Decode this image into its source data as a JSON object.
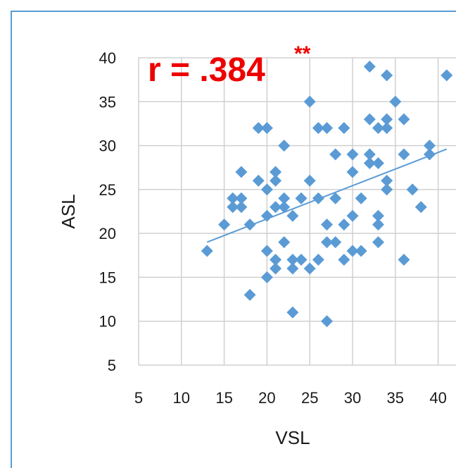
{
  "chart_data": {
    "type": "scatter",
    "title": "",
    "annotation": {
      "text": "r = .384",
      "superscript": "**",
      "color": "#ee0000"
    },
    "xlabel": "VSL",
    "ylabel": "ASL",
    "xlim": [
      5,
      42
    ],
    "ylim": [
      5,
      40
    ],
    "xticks": [
      "5",
      "10",
      "15",
      "20",
      "25",
      "30",
      "35",
      "40"
    ],
    "yticks": [
      "5",
      "10",
      "15",
      "20",
      "25",
      "30",
      "35",
      "40"
    ],
    "grid": true,
    "legend": "none",
    "marker": "diamond",
    "marker_color": "#5b9bd5",
    "border_color": "#5b9bd5",
    "trendline": {
      "type": "linear",
      "x": [
        13,
        41
      ],
      "y": [
        19.0,
        29.6
      ],
      "color": "#5b9bd5"
    },
    "series": [
      {
        "points": [
          [
            13,
            18
          ],
          [
            15,
            21
          ],
          [
            16,
            24
          ],
          [
            16,
            23
          ],
          [
            17,
            27
          ],
          [
            17,
            24
          ],
          [
            17,
            23
          ],
          [
            18,
            21
          ],
          [
            18,
            13
          ],
          [
            19,
            32
          ],
          [
            19,
            26
          ],
          [
            20,
            32
          ],
          [
            20,
            25
          ],
          [
            20,
            22
          ],
          [
            20,
            18
          ],
          [
            20,
            15
          ],
          [
            21,
            27
          ],
          [
            21,
            26
          ],
          [
            21,
            23
          ],
          [
            21,
            17
          ],
          [
            21,
            16
          ],
          [
            22,
            30
          ],
          [
            22,
            24
          ],
          [
            22,
            23
          ],
          [
            22,
            19
          ],
          [
            23,
            22
          ],
          [
            23,
            17
          ],
          [
            23,
            16
          ],
          [
            23,
            11
          ],
          [
            24,
            24
          ],
          [
            24,
            17
          ],
          [
            25,
            35
          ],
          [
            25,
            26
          ],
          [
            25,
            16
          ],
          [
            26,
            32
          ],
          [
            26,
            24
          ],
          [
            26,
            17
          ],
          [
            27,
            32
          ],
          [
            27,
            21
          ],
          [
            27,
            19
          ],
          [
            27,
            10
          ],
          [
            28,
            29
          ],
          [
            28,
            24
          ],
          [
            28,
            19
          ],
          [
            29,
            32
          ],
          [
            29,
            21
          ],
          [
            29,
            17
          ],
          [
            30,
            29
          ],
          [
            30,
            27
          ],
          [
            30,
            22
          ],
          [
            30,
            18
          ],
          [
            31,
            24
          ],
          [
            31,
            18
          ],
          [
            32,
            39
          ],
          [
            32,
            33
          ],
          [
            32,
            29
          ],
          [
            32,
            28
          ],
          [
            33,
            32
          ],
          [
            33,
            28
          ],
          [
            33,
            22
          ],
          [
            33,
            21
          ],
          [
            33,
            19
          ],
          [
            34,
            38
          ],
          [
            34,
            33
          ],
          [
            34,
            32
          ],
          [
            34,
            26
          ],
          [
            34,
            25
          ],
          [
            35,
            35
          ],
          [
            36,
            33
          ],
          [
            36,
            29
          ],
          [
            36,
            17
          ],
          [
            37,
            25
          ],
          [
            38,
            23
          ],
          [
            39,
            30
          ],
          [
            39,
            29
          ],
          [
            41,
            38
          ]
        ]
      }
    ]
  }
}
